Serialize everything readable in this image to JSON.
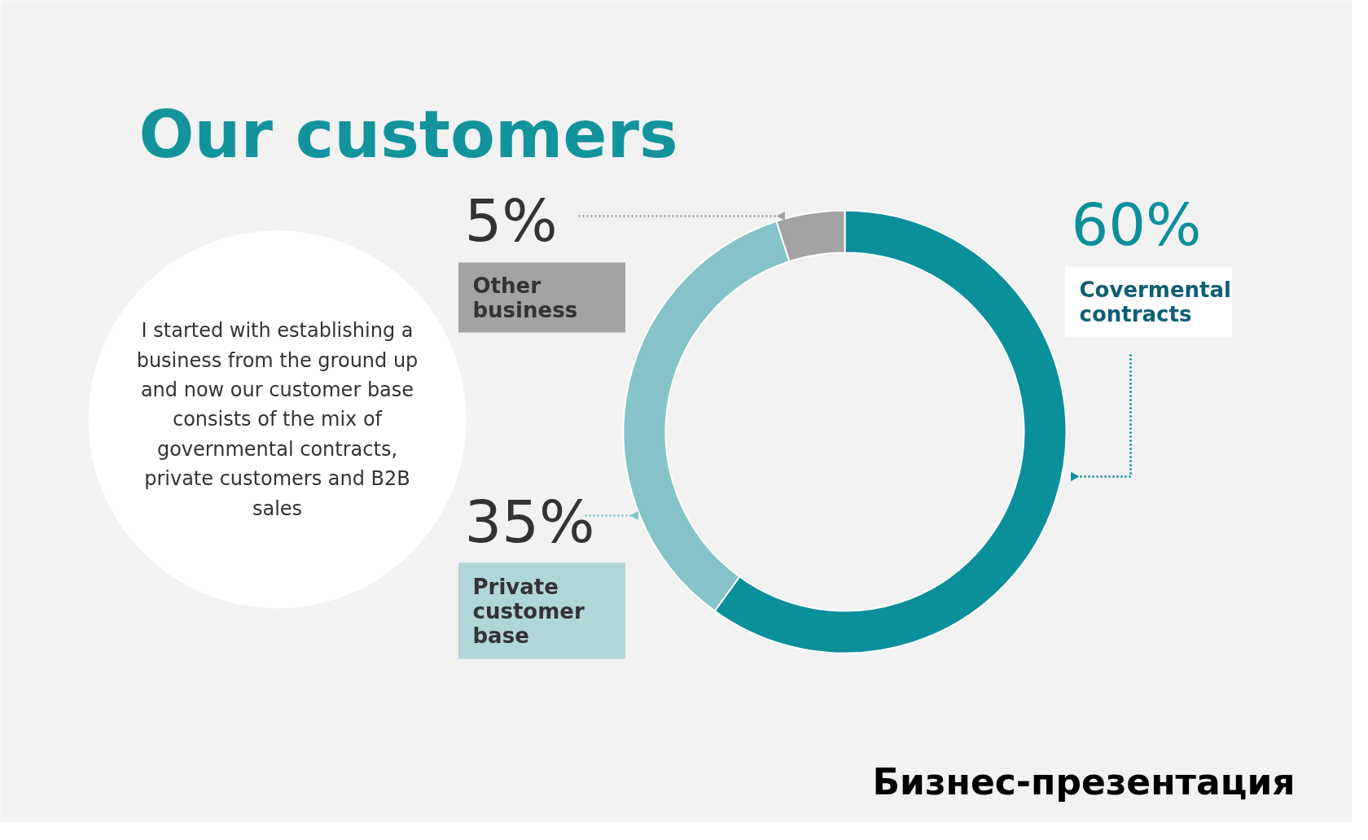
{
  "chart_data": {
    "type": "donut",
    "title": "Our customers",
    "categories": [
      "Covermental contracts",
      "Private customer base",
      "Other business"
    ],
    "values": [
      60,
      35,
      5
    ],
    "colors": [
      "#0b8f9b",
      "#86c3c8",
      "#a3a3a3"
    ],
    "value_labels": [
      "60%",
      "35%",
      "5%"
    ],
    "annotations": [
      "I started with establishing a business from the ground up and now our customer base consists of the mix of governmental contracts, private customers and B2B sales",
      "Бизнес-презентация"
    ]
  }
}
